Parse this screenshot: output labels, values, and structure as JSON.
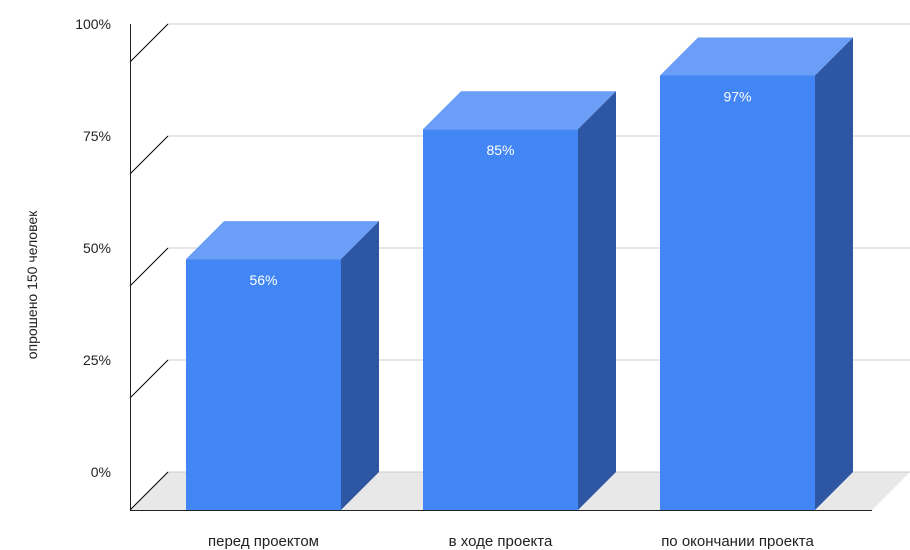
{
  "chart_data": {
    "type": "bar",
    "style": "3d",
    "categories": [
      "перед проектом",
      "в ходе проекта",
      "по окончании проекта"
    ],
    "values": [
      56,
      85,
      97
    ],
    "value_labels": [
      "56%",
      "85%",
      "97%"
    ],
    "ylabel": "опрошено 150 человек",
    "xlabel": "",
    "ylim": [
      0,
      100
    ],
    "yticks": [
      0,
      25,
      50,
      75,
      100
    ],
    "ytick_labels": [
      "0%",
      "25%",
      "50%",
      "75%",
      "100%"
    ],
    "grid": true,
    "legend": "none",
    "colors": {
      "bar_front": "#4285f4",
      "bar_top": "#6a9ef7",
      "bar_side": "#2d56a3",
      "floor": "#e8e8e8",
      "grid": "#cccccc",
      "axis": "#222222"
    }
  }
}
